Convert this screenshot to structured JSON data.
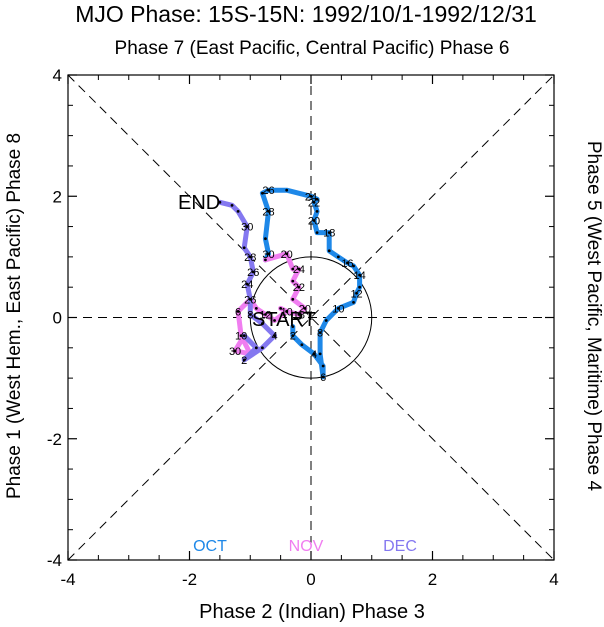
{
  "chart_data": {
    "type": "line",
    "title": "MJO Phase: 15S-15N: 1992/10/1-1992/12/31",
    "top_label": "Phase 7 (East Pacific, Central Pacific) Phase 6",
    "xlabel": "Phase 2 (Indian) Phase 3",
    "left_label": "Phase 1 (West Hem., East Pacific) Phase 8",
    "right_label": "Phase 5 (West Pacific, Maritime) Phase 4",
    "xlim": [
      -4,
      4
    ],
    "ylim": [
      -4,
      4
    ],
    "x_ticks": [
      "-4",
      "-2",
      "0",
      "2",
      "4"
    ],
    "y_ticks": [
      "-4",
      "-2",
      "0",
      "2",
      "4"
    ],
    "grid": false,
    "unit_circle_radius": 1,
    "start_label": "START",
    "end_label": "END",
    "colors": {
      "OCT": "#1e88e8",
      "NOV": "#f07ef0",
      "DEC": "#8478f0"
    },
    "legend": [
      "OCT",
      "NOV",
      "DEC"
    ],
    "series": [
      {
        "name": "OCT",
        "points": [
          {
            "x": -0.3,
            "y": -0.15,
            "label": ""
          },
          {
            "x": -0.3,
            "y": -0.3,
            "label": "2"
          },
          {
            "x": -0.15,
            "y": -0.45,
            "label": ""
          },
          {
            "x": 0.05,
            "y": -0.6,
            "label": "4"
          },
          {
            "x": 0.2,
            "y": -0.8,
            "label": ""
          },
          {
            "x": 0.2,
            "y": -0.98,
            "label": "6"
          },
          {
            "x": 0.15,
            "y": -0.6,
            "label": ""
          },
          {
            "x": 0.15,
            "y": -0.25,
            "label": "8"
          },
          {
            "x": 0.25,
            "y": -0.05,
            "label": ""
          },
          {
            "x": 0.45,
            "y": 0.15,
            "label": "10"
          },
          {
            "x": 0.7,
            "y": 0.25,
            "label": ""
          },
          {
            "x": 0.75,
            "y": 0.4,
            "label": "12"
          },
          {
            "x": 0.8,
            "y": 0.5,
            "label": ""
          },
          {
            "x": 0.8,
            "y": 0.7,
            "label": "14"
          },
          {
            "x": 0.7,
            "y": 0.85,
            "label": ""
          },
          {
            "x": 0.6,
            "y": 0.9,
            "label": "16"
          },
          {
            "x": 0.45,
            "y": 1.0,
            "label": ""
          },
          {
            "x": 0.3,
            "y": 1.1,
            "label": ""
          },
          {
            "x": 0.3,
            "y": 1.4,
            "label": "18"
          },
          {
            "x": 0.1,
            "y": 1.4,
            "label": ""
          },
          {
            "x": 0.05,
            "y": 1.6,
            "label": "20"
          },
          {
            "x": 0.1,
            "y": 1.75,
            "label": ""
          },
          {
            "x": 0.05,
            "y": 1.9,
            "label": "22"
          },
          {
            "x": 0.1,
            "y": 1.95,
            "label": ""
          },
          {
            "x": 0.0,
            "y": 2.0,
            "label": "24"
          },
          {
            "x": -0.4,
            "y": 2.1,
            "label": ""
          },
          {
            "x": -0.7,
            "y": 2.1,
            "label": "26"
          },
          {
            "x": -0.8,
            "y": 2.05,
            "label": ""
          },
          {
            "x": -0.7,
            "y": 1.75,
            "label": "28"
          },
          {
            "x": -0.75,
            "y": 1.3,
            "label": ""
          },
          {
            "x": -0.7,
            "y": 1.05,
            "label": "30"
          },
          {
            "x": -0.75,
            "y": 0.95,
            "label": ""
          }
        ]
      },
      {
        "name": "NOV",
        "points": [
          {
            "x": -0.75,
            "y": 0.95,
            "label": ""
          },
          {
            "x": -0.4,
            "y": 1.05,
            "label": "20"
          },
          {
            "x": -0.3,
            "y": 0.8,
            "label": ""
          },
          {
            "x": -0.2,
            "y": 0.8,
            "label": "24"
          },
          {
            "x": -0.3,
            "y": 0.6,
            "label": ""
          },
          {
            "x": -0.2,
            "y": 0.5,
            "label": "22"
          },
          {
            "x": -0.3,
            "y": 0.3,
            "label": ""
          },
          {
            "x": -0.1,
            "y": 0.15,
            "label": "20"
          },
          {
            "x": -0.2,
            "y": 0.05,
            "label": "18"
          },
          {
            "x": -0.4,
            "y": 0.1,
            "label": ""
          },
          {
            "x": -0.5,
            "y": 0.15,
            "label": ""
          },
          {
            "x": -0.4,
            "y": 0.1,
            "label": "10"
          },
          {
            "x": -0.6,
            "y": -0.05,
            "label": ""
          },
          {
            "x": -0.75,
            "y": 0.05,
            "label": "12"
          },
          {
            "x": -0.9,
            "y": 0.15,
            "label": ""
          },
          {
            "x": -1.0,
            "y": 0.3,
            "label": "26"
          },
          {
            "x": -1.2,
            "y": 0.1,
            "label": "6"
          },
          {
            "x": -1.15,
            "y": -0.3,
            "label": "10"
          },
          {
            "x": -1.0,
            "y": -0.6,
            "label": ""
          },
          {
            "x": -1.25,
            "y": -0.55,
            "label": "30"
          },
          {
            "x": -1.1,
            "y": -0.3,
            "label": ""
          }
        ]
      },
      {
        "name": "DEC",
        "points": [
          {
            "x": -1.1,
            "y": -0.3,
            "label": ""
          },
          {
            "x": -0.9,
            "y": -0.5,
            "label": ""
          },
          {
            "x": -1.1,
            "y": -0.7,
            "label": "2"
          },
          {
            "x": -0.8,
            "y": -0.5,
            "label": ""
          },
          {
            "x": -0.6,
            "y": -0.3,
            "label": "4"
          },
          {
            "x": -0.8,
            "y": -0.1,
            "label": ""
          },
          {
            "x": -1.0,
            "y": 0.05,
            "label": "8"
          },
          {
            "x": -1.0,
            "y": 0.3,
            "label": ""
          },
          {
            "x": -1.05,
            "y": 0.55,
            "label": "24"
          },
          {
            "x": -0.95,
            "y": 0.75,
            "label": "26"
          },
          {
            "x": -1.0,
            "y": 1.0,
            "label": "28"
          },
          {
            "x": -1.1,
            "y": 1.15,
            "label": ""
          },
          {
            "x": -1.05,
            "y": 1.5,
            "label": "30"
          },
          {
            "x": -1.2,
            "y": 1.75,
            "label": ""
          },
          {
            "x": -1.3,
            "y": 1.85,
            "label": ""
          },
          {
            "x": -1.5,
            "y": 1.9,
            "label": ""
          }
        ]
      }
    ]
  }
}
